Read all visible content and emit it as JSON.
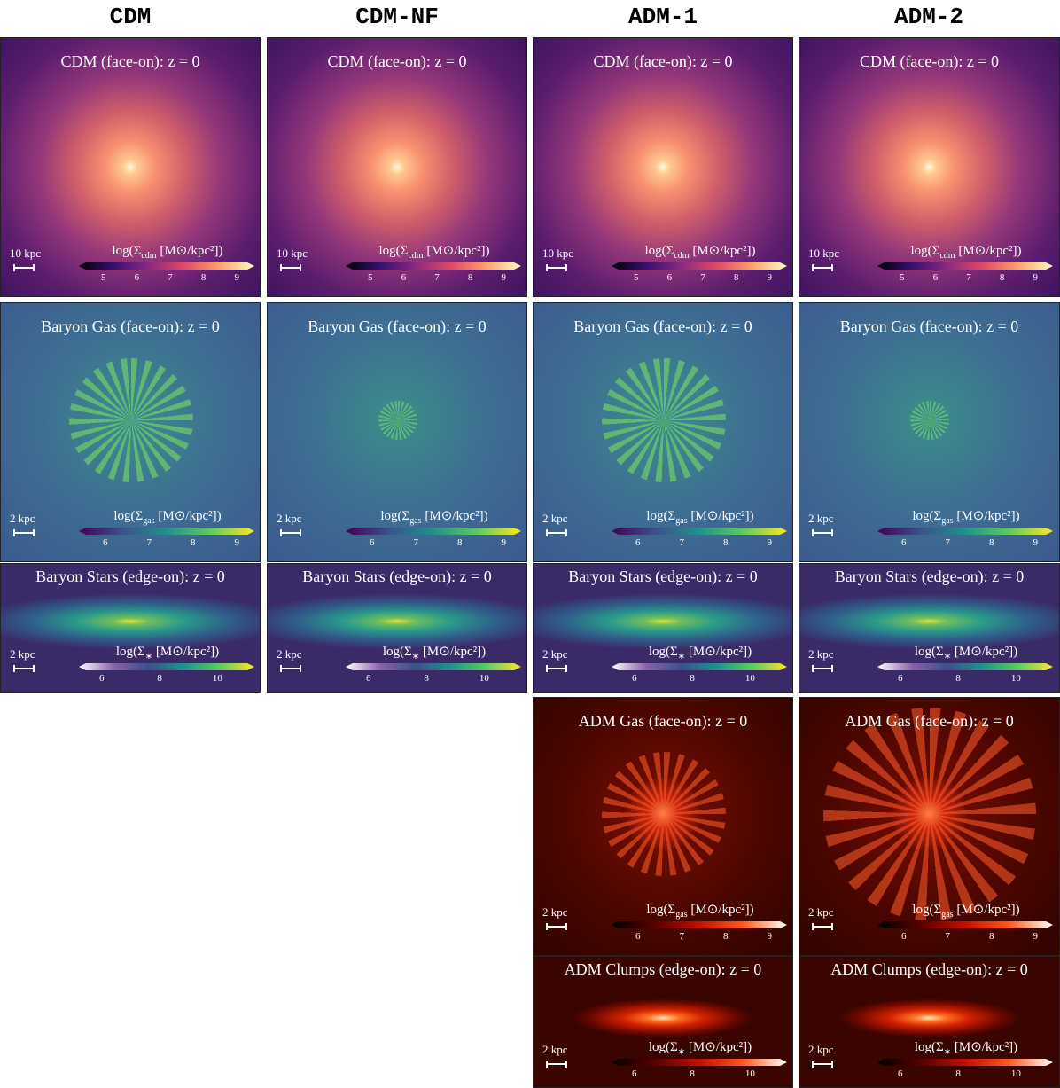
{
  "columns": [
    {
      "name": "CDM",
      "panels": [
        {
          "title": "CDM (face-on): z = 0",
          "scale": "10 kpc",
          "cbar": {
            "pre": "log(Σ",
            "sub": "cdm",
            "post": " [M⊙/kpc²])"
          },
          "ticks": [
            5,
            6,
            7,
            8,
            9
          ]
        },
        {
          "title": "Baryon Gas (face-on): z = 0",
          "scale": "2 kpc",
          "cbar": {
            "pre": "log(Σ",
            "sub": "gas",
            "post": " [M⊙/kpc²])"
          },
          "ticks": [
            6,
            7,
            8,
            9
          ]
        },
        {
          "title": "Baryon Stars (edge-on): z = 0",
          "scale": "2 kpc",
          "cbar": {
            "pre": "log(Σ",
            "sub": "∗",
            "post": " [M⊙/kpc²])"
          },
          "ticks": [
            6,
            8,
            10
          ]
        }
      ]
    },
    {
      "name": "CDM-NF",
      "panels": [
        {
          "title": "CDM (face-on): z = 0",
          "scale": "10 kpc",
          "cbar": {
            "pre": "log(Σ",
            "sub": "cdm",
            "post": " [M⊙/kpc²])"
          },
          "ticks": [
            5,
            6,
            7,
            8,
            9
          ]
        },
        {
          "title": "Baryon Gas (face-on): z = 0",
          "scale": "2 kpc",
          "cbar": {
            "pre": "log(Σ",
            "sub": "gas",
            "post": " [M⊙/kpc²])"
          },
          "ticks": [
            6,
            7,
            8,
            9
          ]
        },
        {
          "title": "Baryon Stars (edge-on): z = 0",
          "scale": "2 kpc",
          "cbar": {
            "pre": "log(Σ",
            "sub": "∗",
            "post": " [M⊙/kpc²])"
          },
          "ticks": [
            6,
            8,
            10
          ]
        }
      ]
    },
    {
      "name": "ADM-1",
      "panels": [
        {
          "title": "CDM (face-on): z = 0",
          "scale": "10 kpc",
          "cbar": {
            "pre": "log(Σ",
            "sub": "cdm",
            "post": " [M⊙/kpc²])"
          },
          "ticks": [
            5,
            6,
            7,
            8,
            9
          ]
        },
        {
          "title": "Baryon Gas (face-on): z = 0",
          "scale": "2 kpc",
          "cbar": {
            "pre": "log(Σ",
            "sub": "gas",
            "post": " [M⊙/kpc²])"
          },
          "ticks": [
            6,
            7,
            8,
            9
          ]
        },
        {
          "title": "Baryon Stars (edge-on): z = 0",
          "scale": "2 kpc",
          "cbar": {
            "pre": "log(Σ",
            "sub": "∗",
            "post": " [M⊙/kpc²])"
          },
          "ticks": [
            6,
            8,
            10
          ]
        },
        {
          "title": "ADM Gas (face-on): z = 0",
          "scale": "2 kpc",
          "cbar": {
            "pre": "log(Σ",
            "sub": "gas",
            "post": " [M⊙/kpc²])"
          },
          "ticks": [
            6,
            7,
            8,
            9
          ]
        },
        {
          "title": "ADM Clumps (edge-on): z = 0",
          "scale": "2 kpc",
          "cbar": {
            "pre": "log(Σ",
            "sub": "∗",
            "post": " [M⊙/kpc²])"
          },
          "ticks": [
            6,
            8,
            10
          ]
        }
      ]
    },
    {
      "name": "ADM-2",
      "panels": [
        {
          "title": "CDM (face-on): z = 0",
          "scale": "10 kpc",
          "cbar": {
            "pre": "log(Σ",
            "sub": "cdm",
            "post": " [M⊙/kpc²])"
          },
          "ticks": [
            5,
            6,
            7,
            8,
            9
          ]
        },
        {
          "title": "Baryon Gas (face-on): z = 0",
          "scale": "2 kpc",
          "cbar": {
            "pre": "log(Σ",
            "sub": "gas",
            "post": " [M⊙/kpc²])"
          },
          "ticks": [
            6,
            7,
            8,
            9
          ]
        },
        {
          "title": "Baryon Stars (edge-on): z = 0",
          "scale": "2 kpc",
          "cbar": {
            "pre": "log(Σ",
            "sub": "∗",
            "post": " [M⊙/kpc²])"
          },
          "ticks": [
            6,
            8,
            10
          ]
        },
        {
          "title": "ADM Gas (face-on): z = 0",
          "scale": "2 kpc",
          "cbar": {
            "pre": "log(Σ",
            "sub": "gas",
            "post": " [M⊙/kpc²])"
          },
          "ticks": [
            6,
            7,
            8,
            9
          ]
        },
        {
          "title": "ADM Clumps (edge-on): z = 0",
          "scale": "2 kpc",
          "cbar": {
            "pre": "log(Σ",
            "sub": "∗",
            "post": " [M⊙/kpc²])"
          },
          "ticks": [
            6,
            8,
            10
          ]
        }
      ]
    }
  ]
}
